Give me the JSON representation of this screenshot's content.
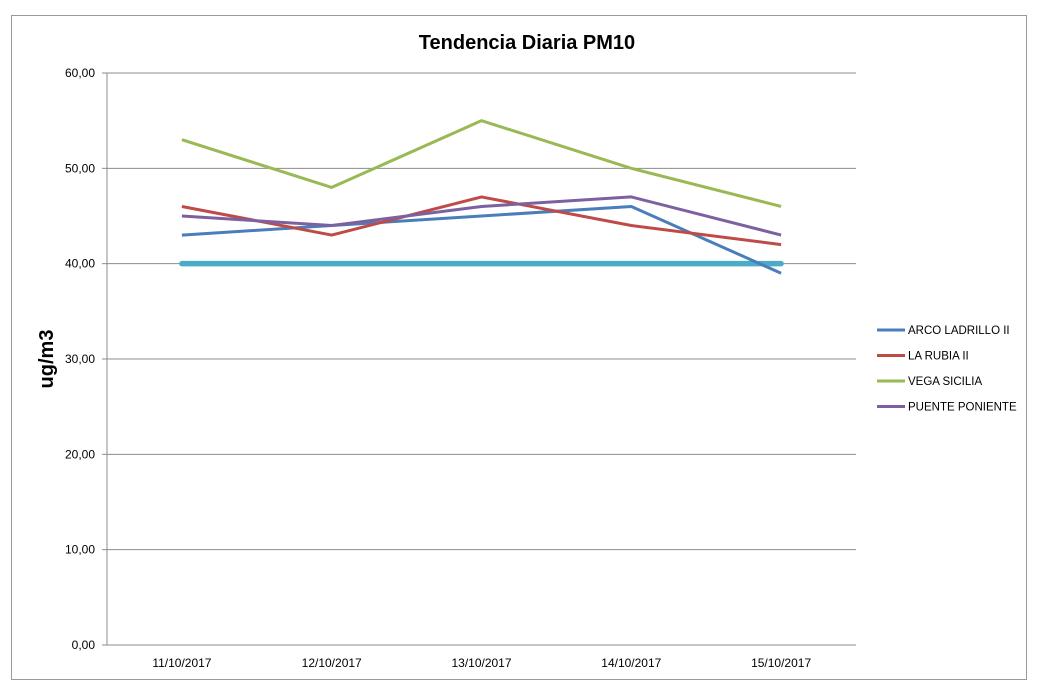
{
  "chart_data": {
    "type": "line",
    "title": "Tendencia  Diaria PM10",
    "xlabel": "",
    "ylabel": "ug/m3",
    "ylim": [
      0,
      60
    ],
    "yticks": [
      "0,00",
      "10,00",
      "20,00",
      "30,00",
      "40,00",
      "50,00",
      "60,00"
    ],
    "categories": [
      "11/10/2017",
      "12/10/2017",
      "13/10/2017",
      "14/10/2017",
      "15/10/2017"
    ],
    "grid": "horizontal",
    "legend_position": "right",
    "series": [
      {
        "name": "ARCO  LADRILLO II",
        "color": "#4a7ebb",
        "values": [
          43,
          44,
          45,
          46,
          39
        ]
      },
      {
        "name": "LA RUBIA II",
        "color": "#be4b48",
        "values": [
          46,
          43,
          47,
          44,
          42
        ]
      },
      {
        "name": "VEGA SICILIA",
        "color": "#98b954",
        "values": [
          53,
          48,
          55,
          50,
          46
        ]
      },
      {
        "name": "PUENTE PONIENTE",
        "color": "#7d60a0",
        "values": [
          45,
          44,
          46,
          47,
          43
        ]
      }
    ],
    "reference_line": {
      "value": 40,
      "color": "#4bacc6",
      "in_legend": false
    }
  }
}
